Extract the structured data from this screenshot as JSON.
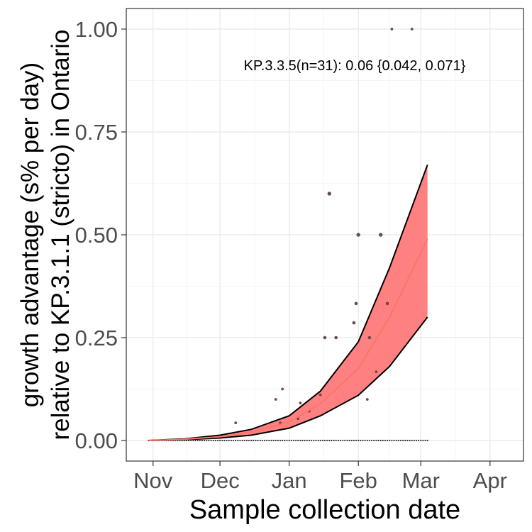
{
  "chart_data": {
    "type": "line",
    "title": "",
    "xlabel": "Sample collection date",
    "ylabel_lines": [
      "growth advantage (s% per day)",
      "relative to KP.3.1.1 (stricto) in Ontario"
    ],
    "annotation": "KP.3.3.5(n=31): 0.06 {0.042, 0.071}",
    "xlim": [
      "2024-10-20",
      "2025-04-16"
    ],
    "ylim": [
      -0.05,
      1.05
    ],
    "x_ticks": [
      {
        "date": "2024-11-01",
        "label": "Nov"
      },
      {
        "date": "2024-12-01",
        "label": "Dec"
      },
      {
        "date": "2025-01-01",
        "label": "Jan"
      },
      {
        "date": "2025-02-01",
        "label": "Feb"
      },
      {
        "date": "2025-03-01",
        "label": "Mar"
      },
      {
        "date": "2025-04-01",
        "label": "Apr"
      }
    ],
    "y_ticks": [
      {
        "value": 0.0,
        "label": "0.00"
      },
      {
        "value": 0.25,
        "label": "0.25"
      },
      {
        "value": 0.5,
        "label": "0.50"
      },
      {
        "value": 0.75,
        "label": "0.75"
      },
      {
        "value": 1.0,
        "label": "1.00"
      }
    ],
    "grid": true,
    "series": [
      {
        "fit": {
          "x": [
            "2024-10-30",
            "2024-11-15",
            "2024-12-01",
            "2024-12-15",
            "2025-01-01",
            "2025-01-15",
            "2025-02-01",
            "2025-02-15",
            "2025-03-04"
          ],
          "y": [
            0.0,
            0.003,
            0.009,
            0.02,
            0.045,
            0.09,
            0.175,
            0.3,
            0.49
          ]
        },
        "lower": [
          0.0,
          0.002,
          0.006,
          0.013,
          0.03,
          0.06,
          0.11,
          0.18,
          0.3
        ],
        "upper": [
          0.0,
          0.004,
          0.013,
          0.027,
          0.06,
          0.12,
          0.24,
          0.42,
          0.67
        ],
        "color": "#f8766d",
        "band_color": "#ff8080"
      }
    ],
    "points": {
      "x": [
        "2024-12-08",
        "2024-12-26",
        "2024-12-28",
        "2024-12-29",
        "2025-01-05",
        "2025-01-06",
        "2025-01-10",
        "2025-01-15",
        "2025-01-17",
        "2025-01-19",
        "2025-01-22",
        "2025-01-30",
        "2025-01-31",
        "2025-02-01",
        "2025-02-05",
        "2025-02-06",
        "2025-02-09",
        "2025-02-11",
        "2025-02-14",
        "2025-02-16",
        "2025-02-25"
      ],
      "y": [
        0.043,
        0.1,
        0.043,
        0.125,
        0.053,
        0.091,
        0.071,
        0.111,
        0.25,
        0.6,
        0.25,
        0.286,
        0.333,
        0.5,
        0.1,
        0.25,
        0.167,
        0.5,
        0.333,
        1.0,
        1.0
      ],
      "zero_range": [
        "2024-10-30",
        "2025-03-04"
      ]
    }
  }
}
